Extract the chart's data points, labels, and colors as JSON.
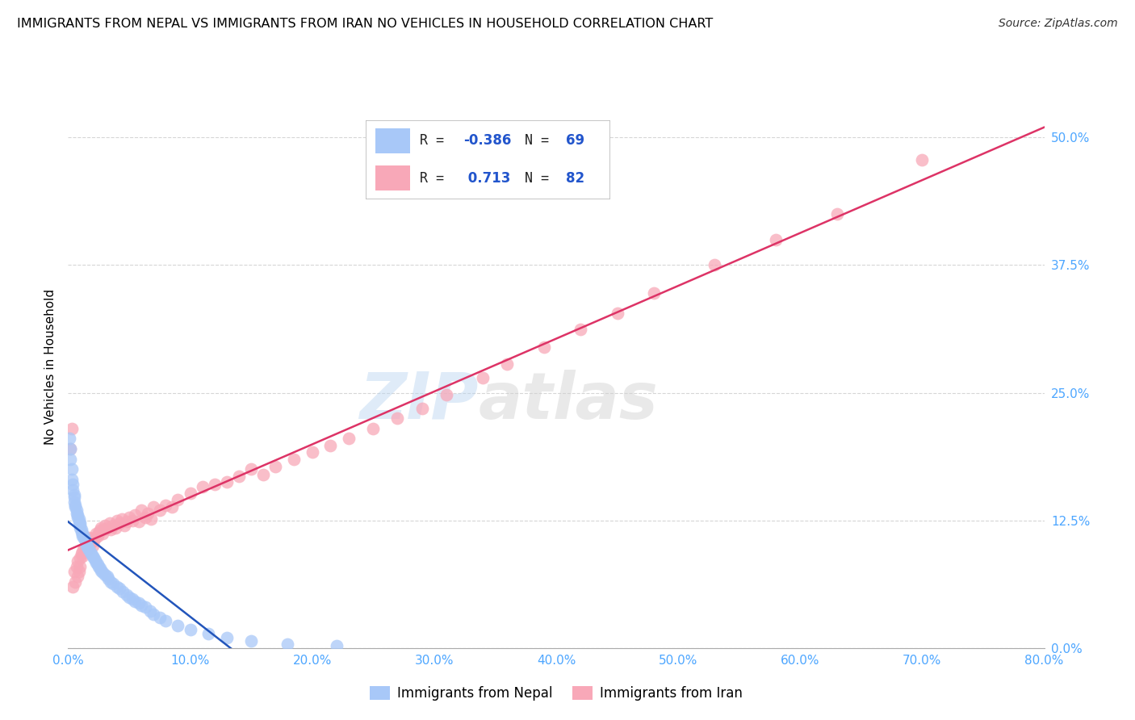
{
  "title": "IMMIGRANTS FROM NEPAL VS IMMIGRANTS FROM IRAN NO VEHICLES IN HOUSEHOLD CORRELATION CHART",
  "source": "Source: ZipAtlas.com",
  "tick_color": "#4da6ff",
  "ylabel": "No Vehicles in Household",
  "xmin": 0.0,
  "xmax": 0.8,
  "ymin": 0.0,
  "ymax": 0.55,
  "xticks": [
    0.0,
    0.1,
    0.2,
    0.3,
    0.4,
    0.5,
    0.6,
    0.7,
    0.8
  ],
  "yticks": [
    0.0,
    0.125,
    0.25,
    0.375,
    0.5
  ],
  "nepal_color": "#a8c8f8",
  "iran_color": "#f8a8b8",
  "nepal_line_color": "#2255bb",
  "iran_line_color": "#dd3366",
  "nepal_R": -0.386,
  "nepal_N": 69,
  "iran_R": 0.713,
  "iran_N": 82,
  "watermark_zip": "ZIP",
  "watermark_atlas": "atlas",
  "background_color": "#ffffff",
  "grid_color": "#cccccc",
  "nepal_x": [
    0.001,
    0.002,
    0.002,
    0.003,
    0.003,
    0.004,
    0.004,
    0.005,
    0.005,
    0.005,
    0.006,
    0.006,
    0.007,
    0.007,
    0.008,
    0.008,
    0.009,
    0.009,
    0.01,
    0.01,
    0.01,
    0.011,
    0.011,
    0.012,
    0.012,
    0.013,
    0.013,
    0.014,
    0.015,
    0.015,
    0.016,
    0.017,
    0.018,
    0.019,
    0.02,
    0.021,
    0.022,
    0.023,
    0.024,
    0.025,
    0.026,
    0.027,
    0.028,
    0.03,
    0.032,
    0.033,
    0.035,
    0.037,
    0.04,
    0.042,
    0.045,
    0.048,
    0.05,
    0.053,
    0.055,
    0.058,
    0.06,
    0.063,
    0.067,
    0.07,
    0.075,
    0.08,
    0.09,
    0.1,
    0.115,
    0.13,
    0.15,
    0.18,
    0.22
  ],
  "nepal_y": [
    0.205,
    0.195,
    0.185,
    0.175,
    0.165,
    0.16,
    0.155,
    0.15,
    0.148,
    0.143,
    0.14,
    0.138,
    0.135,
    0.132,
    0.13,
    0.128,
    0.126,
    0.123,
    0.122,
    0.12,
    0.118,
    0.116,
    0.114,
    0.112,
    0.11,
    0.109,
    0.107,
    0.105,
    0.103,
    0.1,
    0.098,
    0.096,
    0.094,
    0.092,
    0.09,
    0.088,
    0.086,
    0.084,
    0.082,
    0.08,
    0.078,
    0.076,
    0.074,
    0.072,
    0.07,
    0.068,
    0.065,
    0.063,
    0.06,
    0.058,
    0.055,
    0.052,
    0.05,
    0.048,
    0.046,
    0.044,
    0.042,
    0.04,
    0.036,
    0.033,
    0.03,
    0.027,
    0.022,
    0.018,
    0.014,
    0.01,
    0.007,
    0.004,
    0.002
  ],
  "iran_x": [
    0.002,
    0.003,
    0.004,
    0.005,
    0.006,
    0.007,
    0.008,
    0.008,
    0.009,
    0.01,
    0.01,
    0.011,
    0.012,
    0.012,
    0.013,
    0.014,
    0.015,
    0.015,
    0.016,
    0.017,
    0.018,
    0.019,
    0.02,
    0.021,
    0.022,
    0.023,
    0.024,
    0.025,
    0.026,
    0.027,
    0.028,
    0.029,
    0.03,
    0.032,
    0.034,
    0.035,
    0.037,
    0.039,
    0.04,
    0.042,
    0.044,
    0.046,
    0.048,
    0.05,
    0.053,
    0.055,
    0.058,
    0.06,
    0.063,
    0.065,
    0.068,
    0.07,
    0.075,
    0.08,
    0.085,
    0.09,
    0.1,
    0.11,
    0.12,
    0.13,
    0.14,
    0.15,
    0.16,
    0.17,
    0.185,
    0.2,
    0.215,
    0.23,
    0.25,
    0.27,
    0.29,
    0.31,
    0.34,
    0.36,
    0.39,
    0.42,
    0.45,
    0.48,
    0.53,
    0.58,
    0.63,
    0.7
  ],
  "iran_y": [
    0.195,
    0.215,
    0.06,
    0.075,
    0.065,
    0.08,
    0.07,
    0.085,
    0.075,
    0.08,
    0.088,
    0.092,
    0.09,
    0.095,
    0.098,
    0.1,
    0.095,
    0.102,
    0.105,
    0.108,
    0.103,
    0.107,
    0.1,
    0.105,
    0.108,
    0.112,
    0.11,
    0.113,
    0.115,
    0.118,
    0.112,
    0.116,
    0.12,
    0.118,
    0.122,
    0.116,
    0.12,
    0.118,
    0.125,
    0.122,
    0.126,
    0.12,
    0.124,
    0.128,
    0.125,
    0.13,
    0.124,
    0.135,
    0.128,
    0.132,
    0.126,
    0.138,
    0.135,
    0.14,
    0.138,
    0.145,
    0.152,
    0.158,
    0.16,
    0.163,
    0.168,
    0.175,
    0.17,
    0.178,
    0.185,
    0.192,
    0.198,
    0.205,
    0.215,
    0.225,
    0.235,
    0.248,
    0.265,
    0.278,
    0.295,
    0.312,
    0.328,
    0.348,
    0.375,
    0.4,
    0.425,
    0.478
  ]
}
